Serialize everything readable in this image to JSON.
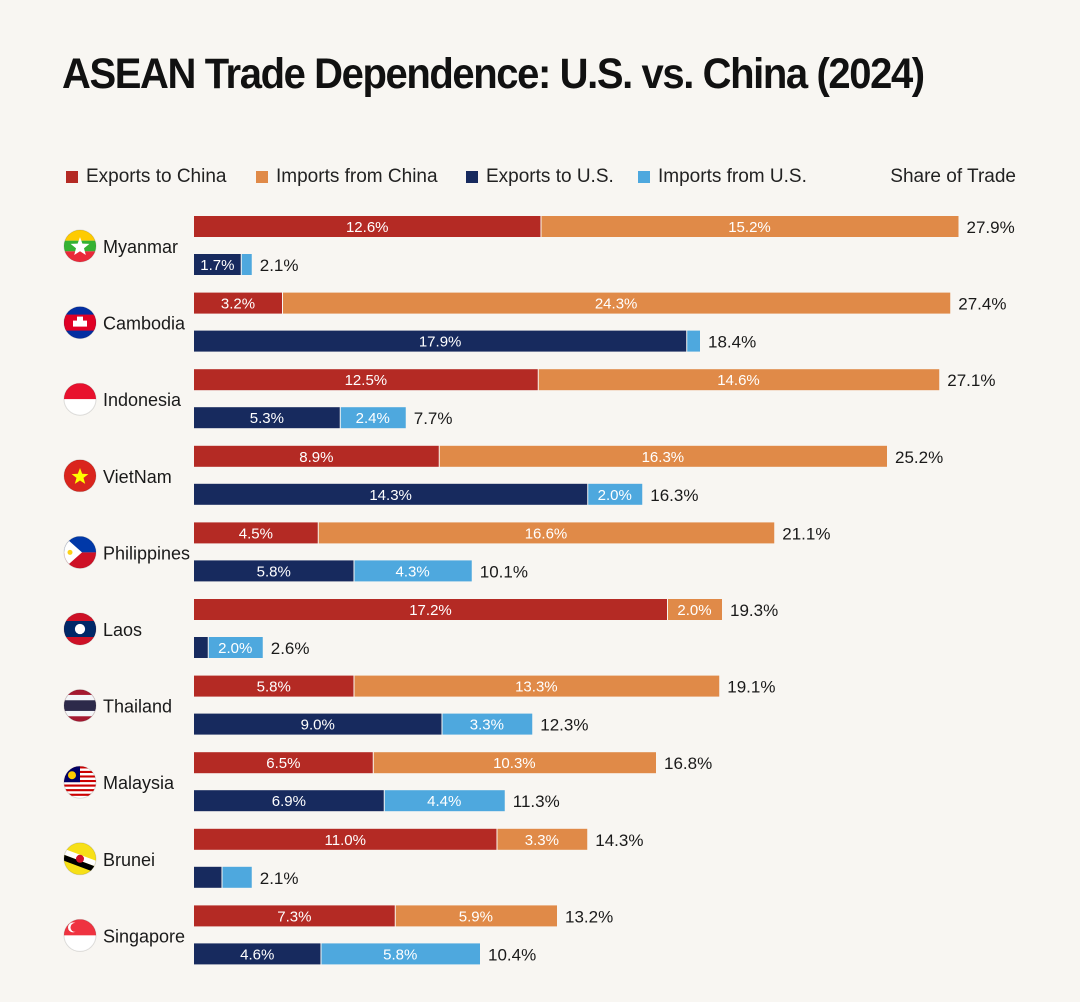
{
  "title": "ASEAN Trade Dependence: U.S. vs. China (2024)",
  "legend": {
    "items": [
      {
        "label": "Exports to China",
        "color": "#b42a24"
      },
      {
        "label": "Imports from China",
        "color": "#e08a48"
      },
      {
        "label": "Exports to U.S.",
        "color": "#172a5e"
      },
      {
        "label": "Imports from U.S.",
        "color": "#4ea8de"
      }
    ],
    "share_label": "Share of Trade"
  },
  "chart_data": {
    "type": "bar",
    "orientation": "horizontal",
    "stacked": true,
    "title": "ASEAN Trade Dependence: U.S. vs. China (2024)",
    "value_axis_label": "Share of Trade",
    "unit": "%",
    "xlim": [
      0,
      27.9
    ],
    "categories": [
      "Myanmar",
      "Cambodia",
      "Indonesia",
      "VietNam",
      "Philippines",
      "Laos",
      "Thailand",
      "Malaysia",
      "Brunei",
      "Singapore"
    ],
    "rows": [
      {
        "country": "Myanmar",
        "china": {
          "exports": 12.6,
          "imports": 15.2,
          "total": 27.9,
          "labels": [
            "12.6%",
            "15.2%"
          ],
          "total_label": "27.9%"
        },
        "us": {
          "exports": 1.7,
          "imports": 0.4,
          "total": 2.1,
          "labels": [
            "1.7%",
            ""
          ],
          "total_label": "2.1%"
        }
      },
      {
        "country": "Cambodia",
        "china": {
          "exports": 3.2,
          "imports": 24.3,
          "total": 27.4,
          "labels": [
            "3.2%",
            "24.3%"
          ],
          "total_label": "27.4%"
        },
        "us": {
          "exports": 17.9,
          "imports": 0.5,
          "total": 18.4,
          "labels": [
            "17.9%",
            ""
          ],
          "total_label": "18.4%"
        }
      },
      {
        "country": "Indonesia",
        "china": {
          "exports": 12.5,
          "imports": 14.6,
          "total": 27.1,
          "labels": [
            "12.5%",
            "14.6%"
          ],
          "total_label": "27.1%"
        },
        "us": {
          "exports": 5.3,
          "imports": 2.4,
          "total": 7.7,
          "labels": [
            "5.3%",
            "2.4%"
          ],
          "total_label": "7.7%"
        }
      },
      {
        "country": "VietNam",
        "china": {
          "exports": 8.9,
          "imports": 16.3,
          "total": 25.2,
          "labels": [
            "8.9%",
            "16.3%"
          ],
          "total_label": "25.2%"
        },
        "us": {
          "exports": 14.3,
          "imports": 2.0,
          "total": 16.3,
          "labels": [
            "14.3%",
            "2.0%"
          ],
          "total_label": "16.3%"
        }
      },
      {
        "country": "Philippines",
        "china": {
          "exports": 4.5,
          "imports": 16.6,
          "total": 21.1,
          "labels": [
            "4.5%",
            "16.6%"
          ],
          "total_label": "21.1%"
        },
        "us": {
          "exports": 5.8,
          "imports": 4.3,
          "total": 10.1,
          "labels": [
            "5.8%",
            "4.3%"
          ],
          "total_label": "10.1%"
        }
      },
      {
        "country": "Laos",
        "china": {
          "exports": 17.2,
          "imports": 2.0,
          "total": 19.3,
          "labels": [
            "17.2%",
            "2.0%"
          ],
          "total_label": "19.3%"
        },
        "us": {
          "exports": 0.5,
          "imports": 2.0,
          "total": 2.6,
          "labels": [
            "",
            "2.0%"
          ],
          "total_label": "2.6%"
        }
      },
      {
        "country": "Thailand",
        "china": {
          "exports": 5.8,
          "imports": 13.3,
          "total": 19.1,
          "labels": [
            "5.8%",
            "13.3%"
          ],
          "total_label": "19.1%"
        },
        "us": {
          "exports": 9.0,
          "imports": 3.3,
          "total": 12.3,
          "labels": [
            "9.0%",
            "3.3%"
          ],
          "total_label": "12.3%"
        }
      },
      {
        "country": "Malaysia",
        "china": {
          "exports": 6.5,
          "imports": 10.3,
          "total": 16.8,
          "labels": [
            "6.5%",
            "10.3%"
          ],
          "total_label": "16.8%"
        },
        "us": {
          "exports": 6.9,
          "imports": 4.4,
          "total": 11.3,
          "labels": [
            "6.9%",
            "4.4%"
          ],
          "total_label": "11.3%"
        }
      },
      {
        "country": "Brunei",
        "china": {
          "exports": 11.0,
          "imports": 3.3,
          "total": 14.3,
          "labels": [
            "11.0%",
            "3.3%"
          ],
          "total_label": "14.3%"
        },
        "us": {
          "exports": 1.0,
          "imports": 1.1,
          "total": 2.1,
          "labels": [
            "",
            ""
          ],
          "total_label": "2.1%"
        }
      },
      {
        "country": "Singapore",
        "china": {
          "exports": 7.3,
          "imports": 5.9,
          "total": 13.2,
          "labels": [
            "7.3%",
            "5.9%"
          ],
          "total_label": "13.2%"
        },
        "us": {
          "exports": 4.6,
          "imports": 5.8,
          "total": 10.4,
          "labels": [
            "4.6%",
            "5.8%"
          ],
          "total_label": "10.4%"
        }
      }
    ]
  },
  "flags": [
    {
      "country": "Myanmar",
      "icon": "myanmar-flag-icon",
      "colors": [
        "#fecb00",
        "#34b233",
        "#ea2839",
        "#ffffff"
      ]
    },
    {
      "country": "Cambodia",
      "icon": "cambodia-flag-icon",
      "colors": [
        "#032ea1",
        "#e00025",
        "#ffffff"
      ]
    },
    {
      "country": "Indonesia",
      "icon": "indonesia-flag-icon",
      "colors": [
        "#e8112d",
        "#ffffff"
      ]
    },
    {
      "country": "VietNam",
      "icon": "vietnam-flag-icon",
      "colors": [
        "#da251d",
        "#ffff00"
      ]
    },
    {
      "country": "Philippines",
      "icon": "philippines-flag-icon",
      "colors": [
        "#0038a8",
        "#ce1126",
        "#ffffff",
        "#fcd116"
      ]
    },
    {
      "country": "Laos",
      "icon": "laos-flag-icon",
      "colors": [
        "#ce1126",
        "#002868",
        "#ffffff"
      ]
    },
    {
      "country": "Thailand",
      "icon": "thailand-flag-icon",
      "colors": [
        "#a51931",
        "#f4f5f8",
        "#2d2a4a"
      ]
    },
    {
      "country": "Malaysia",
      "icon": "malaysia-flag-icon",
      "colors": [
        "#cc0001",
        "#ffffff",
        "#010066",
        "#ffcc00"
      ]
    },
    {
      "country": "Brunei",
      "icon": "brunei-flag-icon",
      "colors": [
        "#f7e017",
        "#ffffff",
        "#000000",
        "#cf1126"
      ]
    },
    {
      "country": "Singapore",
      "icon": "singapore-flag-icon",
      "colors": [
        "#ef3340",
        "#ffffff"
      ]
    }
  ]
}
